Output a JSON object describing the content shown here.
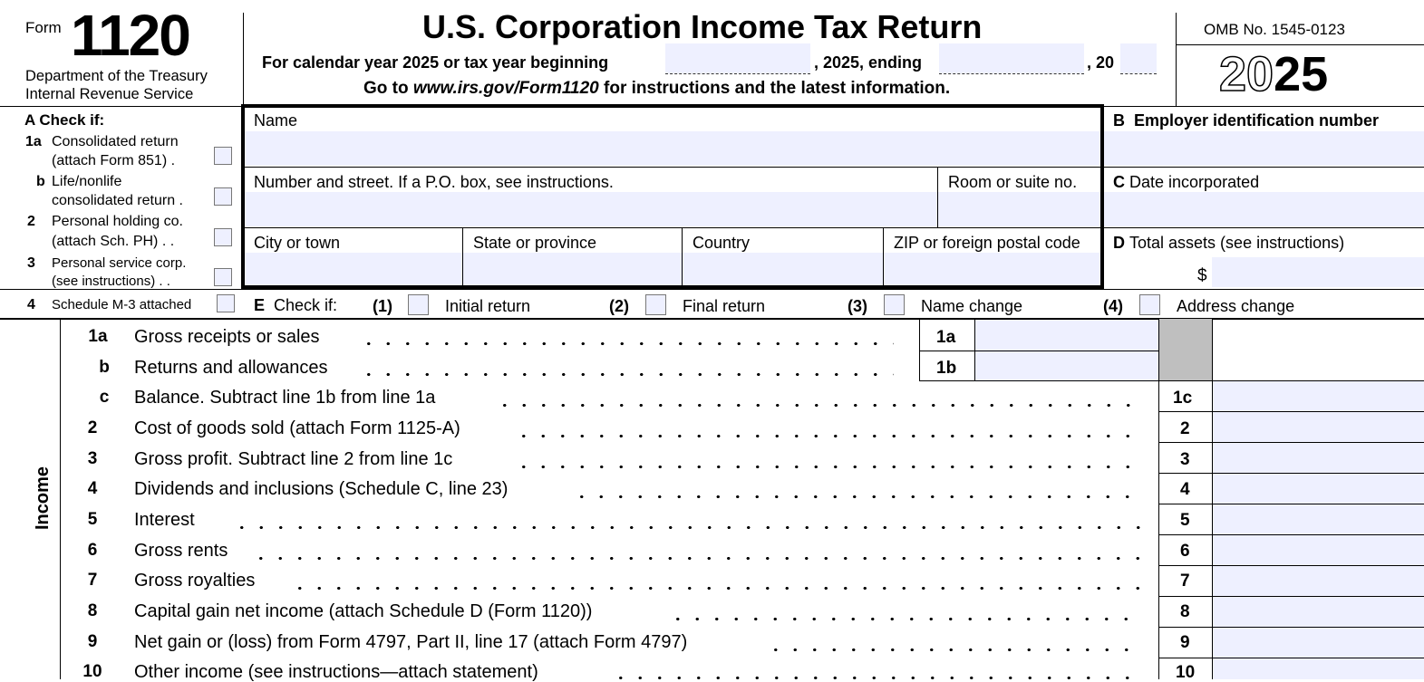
{
  "header": {
    "form_word": "Form",
    "form_number": "1120",
    "dept_line1": "Department of the Treasury",
    "dept_line2": "Internal Revenue Service",
    "title": "U.S. Corporation Income Tax Return",
    "calendar_text": "For calendar year 2025 or tax year beginning",
    "year_mid": ", 2025, ending",
    "year_end": ", 20",
    "goto_prefix": "Go to ",
    "goto_url": "www.irs.gov/Form1120",
    "goto_suffix": " for instructions and the latest information.",
    "omb": "OMB No. 1545-0123",
    "year_outline": "20",
    "year_bold": "25"
  },
  "section_a": {
    "title": "A  Check if:",
    "items": [
      {
        "num": "1a",
        "line1": "Consolidated return",
        "line2": "(attach Form 851)  ."
      },
      {
        "num": "b",
        "line1": "Life/nonlife",
        "line2": "consolidated return ."
      },
      {
        "num": "2",
        "line1": "Personal holding co.",
        "line2": "(attach Sch. PH) .  ."
      },
      {
        "num": "3",
        "line1": "Personal service corp.",
        "line2": "(see instructions)  .  ."
      },
      {
        "num": "4",
        "line1": "Schedule M-3 attached",
        "line2": ""
      }
    ]
  },
  "address": {
    "name_label": "Name",
    "street_label": "Number and street. If a P.O. box, see instructions.",
    "room_label": "Room or suite no.",
    "city_label": "City or town",
    "state_label": "State or province",
    "country_label": "Country",
    "zip_label": "ZIP or foreign postal code"
  },
  "right_col": {
    "b_letter": "B",
    "b_label": "Employer identification number",
    "c_letter": "C",
    "c_label": "Date incorporated",
    "d_letter": "D",
    "d_label": "Total assets (see instructions)",
    "dollar": "$"
  },
  "section_e": {
    "letter": "E",
    "label": "Check if:",
    "options": [
      {
        "num": "(1)",
        "label": "Initial return"
      },
      {
        "num": "(2)",
        "label": "Final return"
      },
      {
        "num": "(3)",
        "label": "Name change"
      },
      {
        "num": "(4)",
        "label": "Address change"
      }
    ]
  },
  "income": {
    "side_label": "Income",
    "lines": [
      {
        "num": "1a",
        "text": "Gross receipts or sales",
        "box": "1a"
      },
      {
        "num": "b",
        "text": "Returns and allowances",
        "box": "1b"
      },
      {
        "num": "c",
        "text": "Balance. Subtract line 1b from line 1a",
        "box": "1c"
      },
      {
        "num": "2",
        "text": "Cost of goods sold (attach Form 1125-A)",
        "box": "2"
      },
      {
        "num": "3",
        "text": "Gross profit. Subtract line 2 from line 1c",
        "box": "3"
      },
      {
        "num": "4",
        "text": "Dividends and inclusions (Schedule C, line 23)",
        "box": "4"
      },
      {
        "num": "5",
        "text": "Interest",
        "box": "5"
      },
      {
        "num": "6",
        "text": "Gross rents",
        "box": "6"
      },
      {
        "num": "7",
        "text": "Gross royalties",
        "box": "7"
      },
      {
        "num": "8",
        "text": "Capital gain net income (attach Schedule D (Form 1120))",
        "box": "8"
      },
      {
        "num": "9",
        "text": "Net gain or (loss) from Form 4797, Part II, line 17 (attach Form 4797)",
        "box": "9"
      },
      {
        "num": "10",
        "text": "Other income (see instructions—attach statement)",
        "box": "10"
      }
    ]
  }
}
